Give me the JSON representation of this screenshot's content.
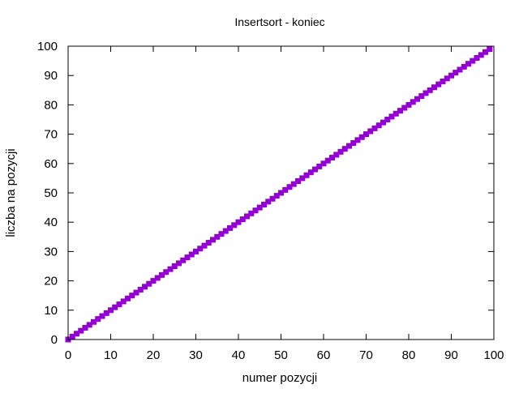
{
  "chart_data": {
    "type": "scatter",
    "title": "Insertsort - koniec",
    "xlabel": "numer pozycji",
    "ylabel": "liczba na pozycji",
    "xlim": [
      0,
      100
    ],
    "ylim": [
      0,
      100
    ],
    "xticks": [
      0,
      10,
      20,
      30,
      40,
      50,
      60,
      70,
      80,
      90,
      100
    ],
    "yticks": [
      0,
      10,
      20,
      30,
      40,
      50,
      60,
      70,
      80,
      90,
      100
    ],
    "grid": false,
    "marker": "square",
    "color": "#9400d3",
    "series": [
      {
        "x": [
          0,
          1,
          2,
          3,
          4,
          5,
          6,
          7,
          8,
          9,
          10,
          11,
          12,
          13,
          14,
          15,
          16,
          17,
          18,
          19,
          20,
          21,
          22,
          23,
          24,
          25,
          26,
          27,
          28,
          29,
          30,
          31,
          32,
          33,
          34,
          35,
          36,
          37,
          38,
          39,
          40,
          41,
          42,
          43,
          44,
          45,
          46,
          47,
          48,
          49,
          50,
          51,
          52,
          53,
          54,
          55,
          56,
          57,
          58,
          59,
          60,
          61,
          62,
          63,
          64,
          65,
          66,
          67,
          68,
          69,
          70,
          71,
          72,
          73,
          74,
          75,
          76,
          77,
          78,
          79,
          80,
          81,
          82,
          83,
          84,
          85,
          86,
          87,
          88,
          89,
          90,
          91,
          92,
          93,
          94,
          95,
          96,
          97,
          98,
          99
        ],
        "y": [
          0,
          1,
          2,
          3,
          4,
          5,
          6,
          7,
          8,
          9,
          10,
          11,
          12,
          13,
          14,
          15,
          16,
          17,
          18,
          19,
          20,
          21,
          22,
          23,
          24,
          25,
          26,
          27,
          28,
          29,
          30,
          31,
          32,
          33,
          34,
          35,
          36,
          37,
          38,
          39,
          40,
          41,
          42,
          43,
          44,
          45,
          46,
          47,
          48,
          49,
          50,
          51,
          52,
          53,
          54,
          55,
          56,
          57,
          58,
          59,
          60,
          61,
          62,
          63,
          64,
          65,
          66,
          67,
          68,
          69,
          70,
          71,
          72,
          73,
          74,
          75,
          76,
          77,
          78,
          79,
          80,
          81,
          82,
          83,
          84,
          85,
          86,
          87,
          88,
          89,
          90,
          91,
          92,
          93,
          94,
          95,
          96,
          97,
          98,
          99
        ]
      }
    ]
  }
}
